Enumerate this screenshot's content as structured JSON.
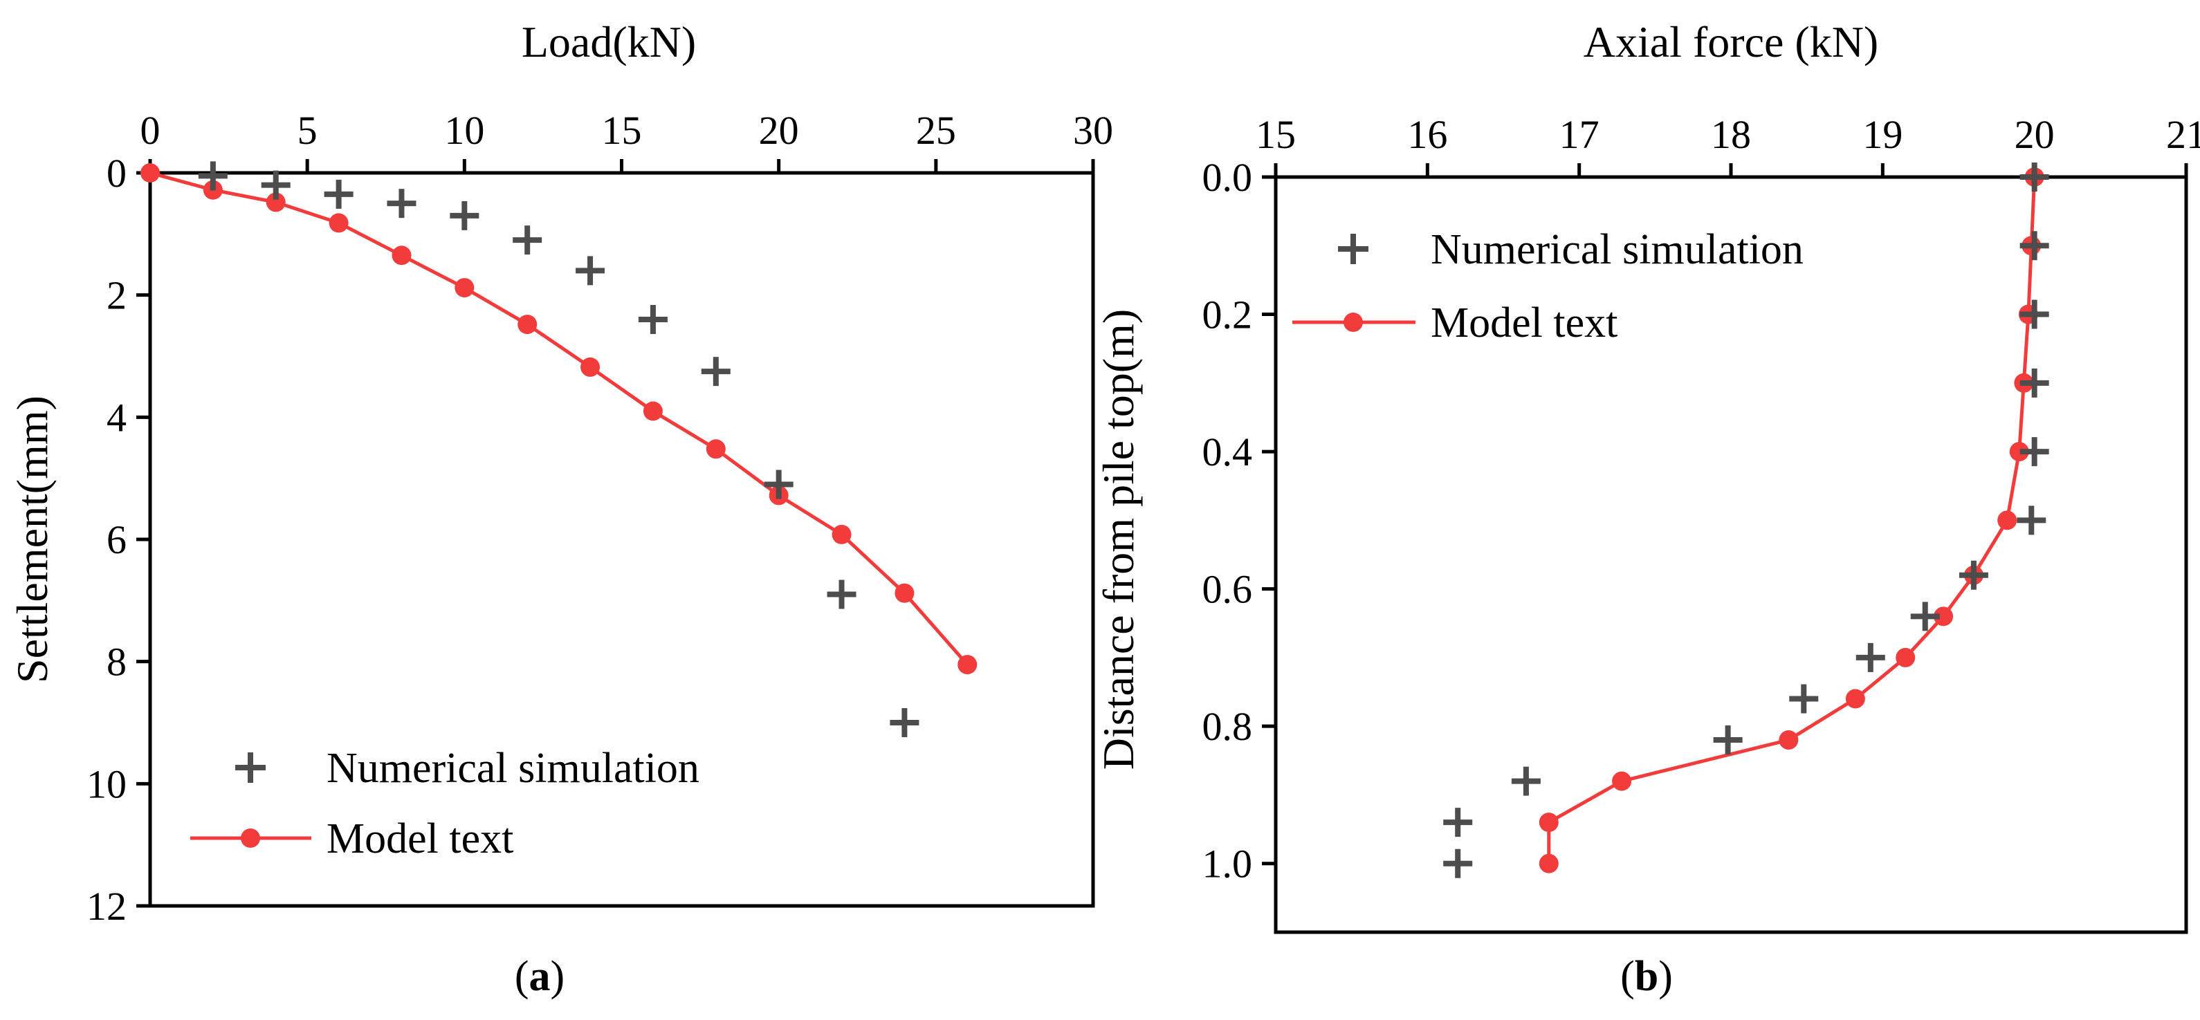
{
  "colors": {
    "simulation": "#4d4d4d",
    "model": "#f23c3c",
    "axis": "#000000",
    "background": "#ffffff"
  },
  "panel_labels": {
    "a": {
      "open": "(",
      "letter": "a",
      "close": ")"
    },
    "b": {
      "open": "(",
      "letter": "b",
      "close": ")"
    }
  },
  "chart_data": [
    {
      "id": "a",
      "type": "line",
      "title": "",
      "xlabel": "Load(kN)",
      "ylabel": "Settlement(mm)",
      "x_axis_position": "top",
      "y_inverted": true,
      "xlim": [
        0,
        30
      ],
      "ylim": [
        0,
        12
      ],
      "xticks": [
        0,
        5,
        10,
        15,
        20,
        25,
        30
      ],
      "xtick_labels": [
        "0",
        "5",
        "10",
        "15",
        "20",
        "25",
        "30"
      ],
      "yticks": [
        0,
        2,
        4,
        6,
        8,
        10,
        12
      ],
      "ytick_labels": [
        "0",
        "2",
        "4",
        "6",
        "8",
        "10",
        "12"
      ],
      "legend_position": "bottom-left",
      "series": [
        {
          "name": "Numerical simulation",
          "style": "scatter",
          "marker": "plus",
          "x": [
            2,
            4,
            6,
            8,
            10,
            12,
            14,
            16,
            18,
            20,
            22,
            24
          ],
          "y": [
            0.05,
            0.2,
            0.35,
            0.5,
            0.7,
            1.1,
            1.6,
            2.4,
            3.25,
            5.1,
            6.9,
            9.0
          ]
        },
        {
          "name": "Model text",
          "style": "line",
          "marker": "circle",
          "x": [
            0,
            2,
            4,
            6,
            8,
            10,
            12,
            14,
            16,
            18,
            20,
            22,
            24,
            26
          ],
          "y": [
            0,
            0.28,
            0.48,
            0.82,
            1.35,
            1.88,
            2.48,
            3.18,
            3.9,
            4.52,
            5.28,
            5.92,
            6.88,
            8.05
          ]
        }
      ]
    },
    {
      "id": "b",
      "type": "line",
      "title": "",
      "xlabel": "Axial force (kN)",
      "ylabel": "Distance from pile top(m)",
      "x_axis_position": "top",
      "y_inverted": true,
      "xlim": [
        15,
        21
      ],
      "ylim": [
        0,
        1.1
      ],
      "xticks": [
        15,
        16,
        17,
        18,
        19,
        20,
        21
      ],
      "xtick_labels": [
        "15",
        "16",
        "17",
        "18",
        "19",
        "20",
        "21"
      ],
      "yticks": [
        0.0,
        0.2,
        0.4,
        0.6,
        0.8,
        1.0
      ],
      "ytick_labels": [
        "0.0",
        "0.2",
        "0.4",
        "0.6",
        "0.8",
        "1.0"
      ],
      "legend_position": "top-left",
      "series": [
        {
          "name": "Numerical simulation",
          "style": "scatter",
          "marker": "plus",
          "x": [
            20.0,
            20.0,
            20.0,
            20.0,
            20.0,
            19.98,
            19.6,
            19.28,
            18.92,
            18.48,
            17.98,
            16.65,
            16.2,
            16.2
          ],
          "y": [
            0.0,
            0.1,
            0.2,
            0.3,
            0.4,
            0.5,
            0.58,
            0.64,
            0.7,
            0.76,
            0.82,
            0.88,
            0.94,
            1.0
          ]
        },
        {
          "name": "Model text",
          "style": "line",
          "marker": "circle",
          "x": [
            20.0,
            19.98,
            19.96,
            19.93,
            19.9,
            19.82,
            19.6,
            19.4,
            19.15,
            18.82,
            18.38,
            17.28,
            16.8,
            16.8
          ],
          "y": [
            0.0,
            0.1,
            0.2,
            0.3,
            0.4,
            0.5,
            0.58,
            0.64,
            0.7,
            0.76,
            0.82,
            0.88,
            0.94,
            1.0
          ]
        }
      ]
    }
  ]
}
